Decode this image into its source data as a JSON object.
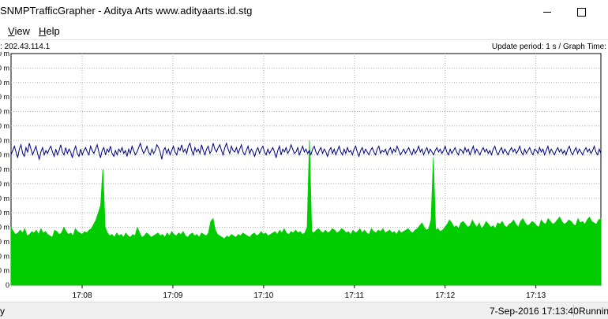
{
  "window": {
    "title": "SNMPTrafficGrapher - Aditya Arts www.adityaarts.id.stg"
  },
  "menu": {
    "view_rest": "iew",
    "view_key": "V",
    "help_rest": "elp",
    "help_key": "H"
  },
  "info": {
    "address": ": 202.43.114.1",
    "update": "Update period: 1 s / Graph Time:"
  },
  "status": {
    "left": "y",
    "datetime": "7-Sep-2016 17:13:40",
    "state": "Running"
  },
  "colors": {
    "upload": "#00cc00",
    "download": "#000080",
    "grid": "#b0b0b0"
  },
  "chart_data": {
    "type": "area",
    "y_tick_labels": [
      "0 m",
      "0 m",
      "0 m",
      "0 m",
      "0 m",
      "0 m",
      "0 m",
      "0 m",
      "0 m",
      "0 m",
      "0 m",
      "0 m",
      "0 m",
      "0 m",
      "0 m",
      "0 m",
      "0"
    ],
    "x_tick_labels": [
      "17:08",
      "17:09",
      "17:10",
      "17:11",
      "17:12",
      "17:13"
    ],
    "x_ticks_sec": [
      47,
      107,
      167,
      227,
      287,
      347
    ],
    "duration_sec": 390,
    "y_divisions": 16,
    "grid": true,
    "series": [
      {
        "color_key": "upload",
        "values": [
          4.0,
          3.7,
          3.5,
          3.6,
          3.8,
          3.6,
          3.9,
          3.4,
          3.5,
          3.7,
          3.6,
          3.8,
          3.5,
          3.9,
          3.6,
          3.7,
          3.5,
          3.4,
          3.3,
          3.8,
          3.7,
          3.5,
          3.6,
          4.0,
          3.7,
          3.5,
          3.6,
          3.4,
          3.9,
          3.7,
          3.6,
          3.5,
          3.7,
          3.6,
          3.8,
          3.9,
          4.2,
          4.5,
          5.0,
          5.5,
          8.0,
          4.0,
          3.6,
          3.4,
          3.5,
          3.3,
          3.6,
          3.4,
          3.5,
          3.3,
          3.6,
          3.4,
          3.3,
          3.5,
          3.4,
          4.0,
          3.6,
          3.3,
          3.4,
          3.6,
          3.5,
          3.3,
          3.4,
          3.5,
          3.6,
          3.4,
          3.5,
          3.3,
          3.6,
          3.4,
          3.7,
          3.5,
          3.4,
          3.6,
          3.5,
          3.7,
          3.4,
          3.3,
          3.5,
          3.6,
          3.4,
          3.5,
          3.3,
          3.6,
          3.5,
          3.4,
          3.6,
          4.4,
          4.6,
          3.8,
          3.5,
          3.4,
          3.3,
          3.2,
          3.4,
          3.3,
          3.5,
          3.4,
          3.3,
          3.5,
          3.4,
          3.6,
          3.5,
          3.4,
          3.3,
          3.5,
          3.6,
          3.4,
          3.5,
          3.7,
          3.5,
          3.6,
          3.4,
          3.5,
          3.6,
          3.7,
          3.5,
          3.8,
          3.6,
          3.9,
          3.6,
          3.5,
          3.7,
          3.6,
          3.8,
          3.6,
          3.7,
          3.5,
          3.6,
          4.0,
          10.0,
          3.7,
          3.6,
          3.8,
          3.9,
          3.7,
          3.6,
          3.8,
          3.6,
          3.7,
          3.9,
          3.8,
          3.6,
          3.7,
          3.9,
          3.8,
          3.6,
          3.7,
          3.5,
          3.8,
          3.6,
          3.7,
          3.9,
          3.6,
          3.8,
          3.6,
          3.5,
          3.9,
          3.7,
          3.6,
          3.8,
          3.7,
          3.9,
          3.6,
          3.7,
          3.8,
          3.6,
          3.7,
          3.5,
          3.8,
          3.6,
          3.7,
          3.8,
          3.9,
          3.7,
          3.6,
          3.8,
          3.9,
          4.1,
          4.3,
          4.0,
          3.8,
          3.9,
          4.5,
          8.8,
          3.8,
          3.9,
          3.7,
          3.8,
          4.0,
          4.2,
          4.5,
          4.3,
          4.0,
          4.1,
          3.9,
          4.3,
          4.4,
          4.2,
          4.0,
          4.1,
          4.5,
          4.2,
          4.0,
          4.3,
          3.9,
          4.1,
          4.4,
          4.2,
          4.0,
          4.1,
          3.9,
          4.3,
          4.2,
          4.4,
          4.1,
          4.0,
          4.2,
          4.3,
          4.5,
          4.2,
          4.0,
          4.4,
          4.6,
          4.3,
          4.1,
          4.2,
          4.4,
          4.3,
          4.1,
          4.0,
          4.5,
          4.3,
          4.2,
          4.6,
          4.4,
          4.2,
          4.3,
          4.5,
          4.7,
          4.4,
          4.2,
          4.3,
          4.5,
          4.4,
          4.2,
          4.1,
          4.6,
          4.3,
          4.4,
          4.2,
          4.5,
          4.7,
          4.4,
          4.3,
          4.2,
          4.5,
          4.6
        ]
      },
      {
        "color_key": "download",
        "values": [
          9.0,
          9.3,
          9.6,
          9.2,
          8.8,
          9.4,
          9.7,
          9.1,
          8.9,
          9.5,
          9.2,
          9.8,
          9.4,
          9.0,
          9.3,
          9.6,
          9.1,
          8.7,
          9.2,
          9.5,
          9.0,
          9.3,
          9.1,
          9.4,
          9.6,
          9.2,
          8.9,
          9.4,
          9.0,
          9.3,
          9.7,
          9.2,
          9.0,
          9.5,
          9.1,
          9.4,
          9.2,
          8.8,
          9.3,
          9.6,
          9.1,
          8.9,
          9.4,
          9.0,
          9.3,
          9.5,
          9.2,
          9.0,
          9.6,
          9.3,
          9.1,
          9.4,
          9.7,
          9.2,
          8.8,
          9.3,
          9.5,
          9.0,
          9.4,
          9.2,
          9.6,
          9.1,
          8.9,
          9.3,
          9.0,
          9.4,
          9.2,
          9.5,
          9.1,
          9.3,
          8.9,
          9.4,
          9.1,
          9.6,
          9.3,
          9.0,
          9.2,
          9.5,
          9.8,
          9.4,
          9.1,
          9.3,
          9.6,
          9.2,
          9.0,
          9.4,
          9.1,
          9.3,
          9.7,
          9.5,
          9.2,
          8.7,
          9.3,
          9.5,
          9.1,
          9.4,
          9.0,
          9.3,
          9.6,
          9.2,
          9.0,
          9.5,
          9.3,
          9.7,
          9.2,
          9.4,
          9.1,
          9.6,
          9.8,
          9.3,
          9.0,
          9.5,
          9.2,
          9.4,
          9.1,
          9.7,
          9.3,
          9.0,
          9.4,
          9.6,
          9.1,
          9.3,
          9.8,
          9.4,
          9.2,
          9.5,
          9.7,
          9.3,
          9.0,
          9.5,
          9.8,
          9.4,
          9.1,
          9.6,
          9.3,
          9.2,
          9.5,
          9.1,
          9.4,
          9.7,
          9.2,
          9.0,
          9.3,
          9.6,
          9.1,
          9.4,
          9.2,
          8.9,
          9.3,
          9.5,
          9.1,
          9.4,
          9.6,
          9.2,
          9.0,
          9.4,
          9.1,
          9.3,
          9.5,
          9.2,
          8.8,
          9.3,
          9.6,
          9.0,
          9.4,
          9.2,
          9.5,
          9.1,
          9.3,
          9.7,
          9.4,
          9.1,
          9.2,
          9.5,
          9.0,
          9.3,
          9.6,
          9.2,
          9.4,
          9.1,
          9.3,
          9.0,
          9.4,
          9.6,
          9.2,
          9.0,
          9.3,
          9.5,
          9.1,
          9.4,
          9.2,
          8.9,
          9.3,
          9.5,
          9.1,
          9.4,
          9.0,
          9.3,
          9.6,
          9.2,
          9.0,
          9.4,
          9.1,
          9.5,
          9.2,
          9.3,
          9.0,
          9.4,
          9.6,
          9.2,
          8.9,
          9.3,
          9.5,
          9.1,
          9.4,
          9.2,
          9.0,
          9.3,
          9.5,
          9.2,
          9.0,
          9.4,
          9.6,
          9.1,
          9.3,
          9.2,
          9.4,
          9.0,
          9.3,
          9.5,
          9.1,
          9.4,
          9.2,
          9.6,
          9.3,
          9.0,
          9.2,
          9.4,
          9.1,
          9.3,
          9.5,
          9.2,
          9.0,
          9.4,
          9.1,
          9.3,
          9.6,
          9.2,
          9.4,
          9.0,
          9.3,
          9.5,
          9.1,
          9.4,
          9.2,
          9.0,
          9.3,
          9.5,
          9.2,
          9.4,
          9.1,
          9.3,
          9.6,
          9.2,
          9.0,
          9.4,
          9.1,
          9.3,
          9.5,
          9.2,
          9.0,
          9.4,
          9.3,
          9.1,
          9.5,
          9.2,
          9.4,
          9.0,
          9.3,
          9.6,
          9.1,
          9.4,
          9.2,
          9.0,
          9.3,
          9.5,
          9.2,
          9.4,
          9.1,
          9.3,
          9.0,
          9.4,
          9.6,
          9.2,
          9.0,
          9.3,
          9.5,
          9.1,
          9.4,
          9.2,
          9.0,
          9.3,
          9.5,
          9.2,
          9.4,
          9.1,
          9.3,
          9.6,
          9.2,
          9.0,
          9.4,
          9.1,
          9.3,
          9.5,
          9.2,
          9.0,
          9.4,
          9.3,
          9.1,
          9.5,
          9.2,
          9.4,
          9.0,
          9.3,
          9.6,
          9.1,
          9.4,
          9.2,
          9.0,
          9.3,
          9.5,
          9.2,
          9.4,
          9.1,
          9.3,
          9.0,
          9.4,
          9.6,
          9.2,
          9.0,
          9.3,
          9.5,
          9.1,
          9.4,
          9.2,
          9.0,
          9.3,
          9.5,
          9.2,
          9.4,
          9.1,
          9.3,
          9.6,
          9.2,
          9.0,
          9.4,
          9.1
        ]
      }
    ]
  }
}
